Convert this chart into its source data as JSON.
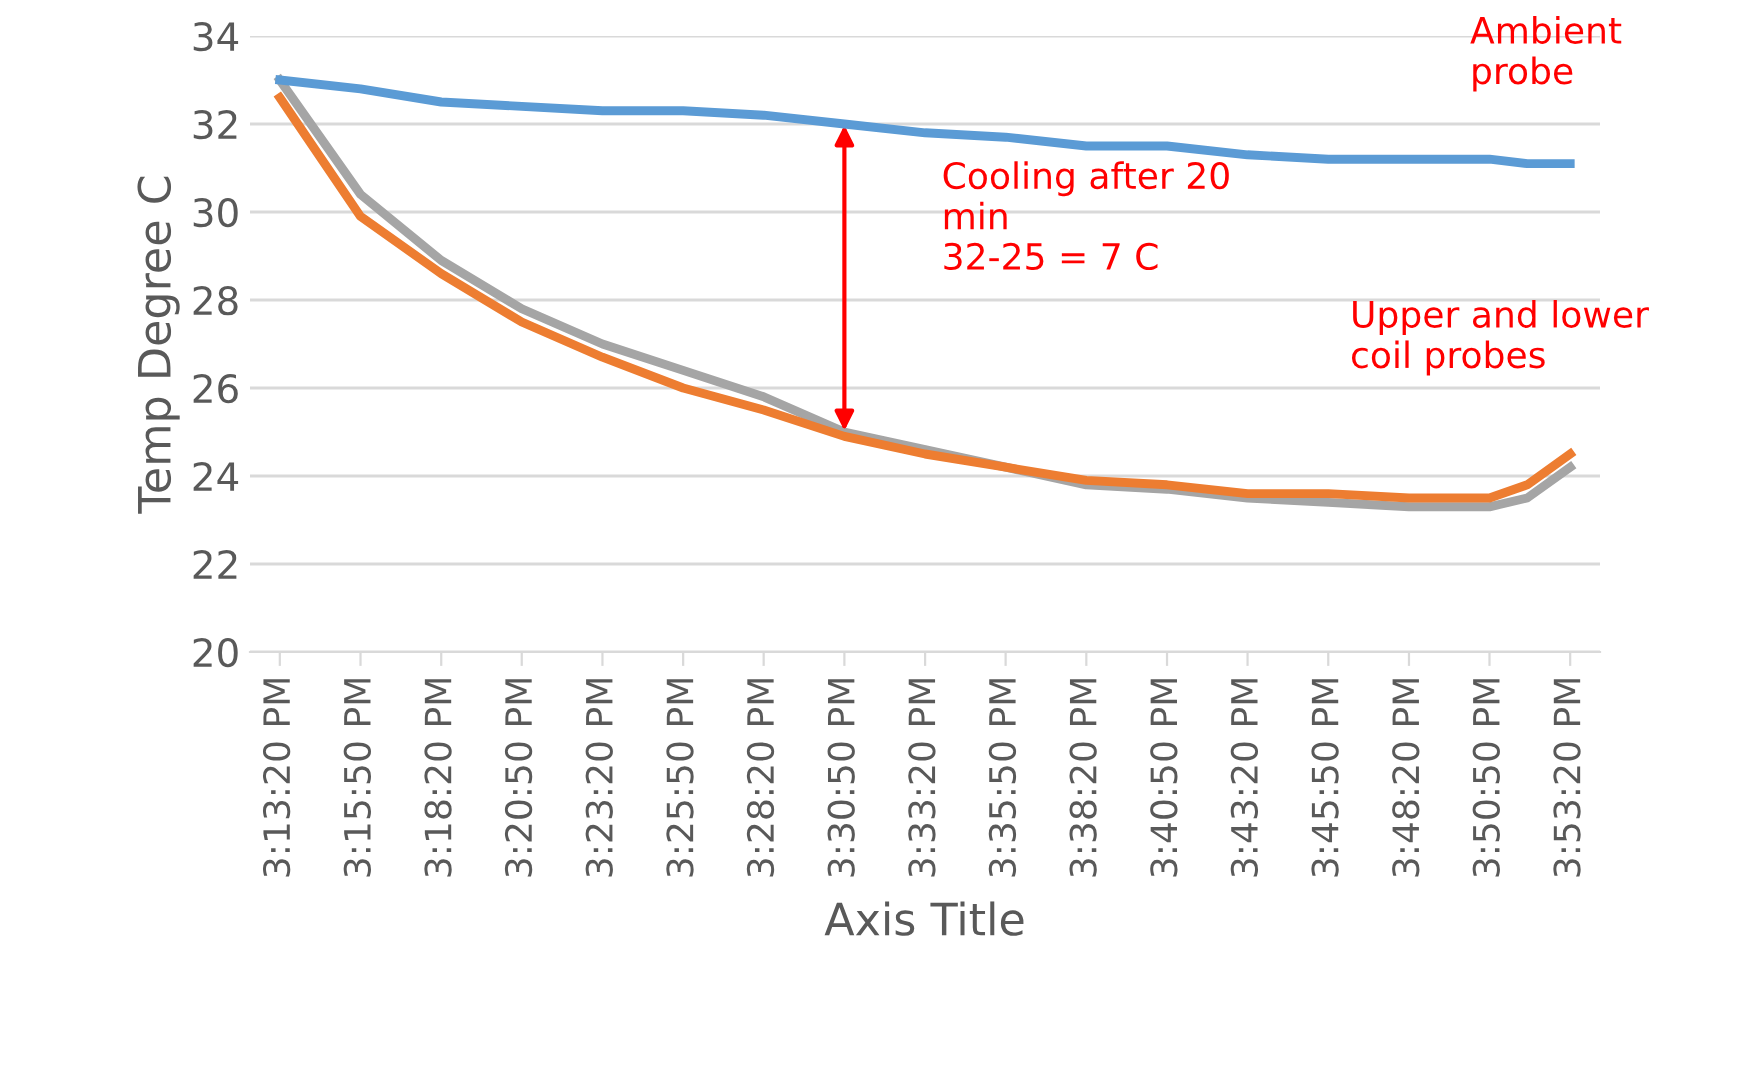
{
  "chart_data": {
    "type": "line",
    "ylabel": "Temp Degree C",
    "xlabel": "Axis Title",
    "x": [
      15.2222,
      15.2639,
      15.3056,
      15.3472,
      15.3889,
      15.4306,
      15.4722,
      15.5139,
      15.5556,
      15.5972,
      15.6389,
      15.6806,
      15.7222,
      15.7639,
      15.8056,
      15.8472,
      15.8667,
      15.8889
    ],
    "series": [
      {
        "color": "#5b9bd5",
        "values": [
          33.0,
          32.8,
          32.5,
          32.4,
          32.3,
          32.3,
          32.2,
          32.0,
          31.8,
          31.7,
          31.5,
          31.5,
          31.3,
          31.2,
          31.2,
          31.2,
          31.1,
          31.1
        ]
      },
      {
        "color": "#ed7d31",
        "values": [
          32.6,
          29.9,
          28.6,
          27.5,
          26.7,
          26.0,
          25.5,
          24.9,
          24.5,
          24.2,
          23.9,
          23.8,
          23.6,
          23.6,
          23.5,
          23.5,
          23.8,
          24.5
        ]
      },
      {
        "color": "#a5a5a5",
        "values": [
          33.0,
          30.4,
          28.9,
          27.8,
          27.0,
          26.4,
          25.8,
          25.0,
          24.6,
          24.2,
          23.8,
          23.7,
          23.5,
          23.4,
          23.3,
          23.3,
          23.5,
          24.2
        ]
      }
    ],
    "xlim": [
      15.2068,
      15.9043
    ],
    "xticks": [
      {
        "value": 15.2222,
        "label": "3:13:20 PM"
      },
      {
        "value": 15.2639,
        "label": "3:15:50 PM"
      },
      {
        "value": 15.3056,
        "label": "3:18:20 PM"
      },
      {
        "value": 15.3472,
        "label": "3:20:50 PM"
      },
      {
        "value": 15.3889,
        "label": "3:23:20 PM"
      },
      {
        "value": 15.4306,
        "label": "3:25:50 PM"
      },
      {
        "value": 15.4722,
        "label": "3:28:20 PM"
      },
      {
        "value": 15.5139,
        "label": "3:30:50 PM"
      },
      {
        "value": 15.5556,
        "label": "3:33:20 PM"
      },
      {
        "value": 15.5972,
        "label": "3:35:50 PM"
      },
      {
        "value": 15.6389,
        "label": "3:38:20 PM"
      },
      {
        "value": 15.6806,
        "label": "3:40:50 PM"
      },
      {
        "value": 15.7222,
        "label": "3:43:20 PM"
      },
      {
        "value": 15.7639,
        "label": "3:45:50 PM"
      },
      {
        "value": 15.8056,
        "label": "3:48:20 PM"
      },
      {
        "value": 15.8472,
        "label": "3:50:50 PM"
      },
      {
        "value": 15.8889,
        "label": "3:53:20 PM"
      }
    ],
    "ylim": [
      20,
      34
    ],
    "yticks": [
      20,
      22,
      24,
      26,
      28,
      30,
      32,
      34
    ],
    "grid": "y",
    "marker": "none",
    "line_style": "solid",
    "annotations": [
      "Ambient\nprobe",
      {
        "text": "Cooling after 20\nmin\n32-25 = 7 C",
        "x": 15.5139,
        "y": 32.1
      },
      "Upper and lower\ncoil probes"
    ]
  }
}
